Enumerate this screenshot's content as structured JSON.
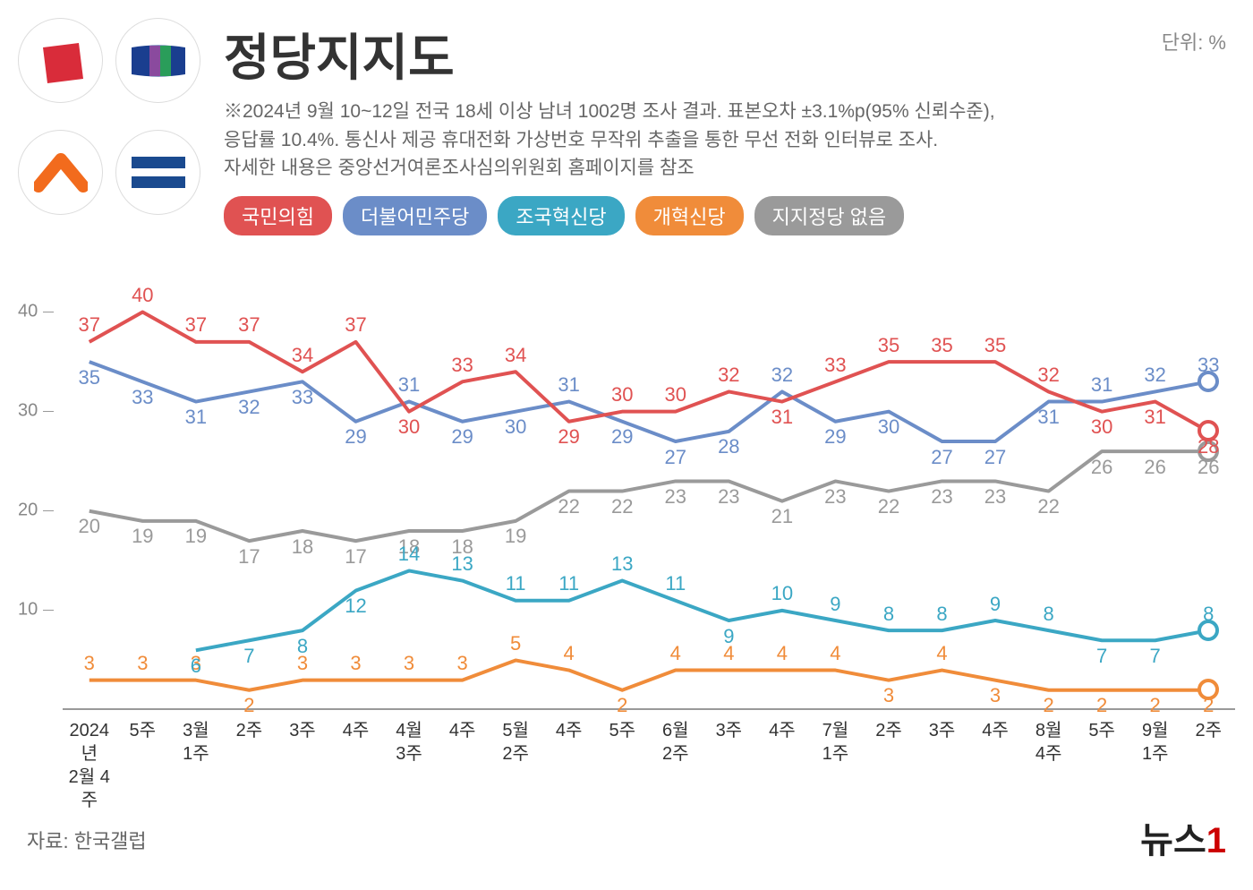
{
  "title": "정당지지도",
  "unit": "단위: %",
  "desc_line1": "※2024년  9월 10~12일 전국 18세 이상 남녀 1002명 조사 결과. 표본오차 ±3.1%p(95% 신뢰수준),",
  "desc_line2": "응답률 10.4%. 통신사 제공 휴대전화 가상번호 무작위 추출을 통한 무선 전화 인터뷰로 조사.",
  "desc_line3": "자세한 내용은 중앙선거여론조사심의위원회 홈페이지를 참조",
  "source": "자료: 한국갤럽",
  "brand": "뉴스",
  "brand_suffix": "1",
  "chart": {
    "type": "line",
    "ylim": [
      0,
      45
    ],
    "yticks": [
      10,
      20,
      30,
      40
    ],
    "background": "#ffffff",
    "axis_color": "#999999",
    "label_fontsize": 22,
    "x_labels": [
      "2024년\n2월 4주",
      "5주",
      "3월\n1주",
      "2주",
      "3주",
      "4주",
      "4월\n3주",
      "4주",
      "5월\n2주",
      "4주",
      "5주",
      "6월\n2주",
      "3주",
      "4주",
      "7월\n1주",
      "2주",
      "3주",
      "4주",
      "8월\n4주",
      "5주",
      "9월\n1주",
      "2주"
    ],
    "legend": [
      {
        "key": "ppp",
        "label": "국민의힘",
        "color": "#e05252"
      },
      {
        "key": "dpk",
        "label": "더불어민주당",
        "color": "#6b8dc8"
      },
      {
        "key": "rkp",
        "label": "조국혁신당",
        "color": "#3ba7c4"
      },
      {
        "key": "rfp",
        "label": "개혁신당",
        "color": "#f08c3a"
      },
      {
        "key": "none",
        "label": "지지정당 없음",
        "color": "#9a9a9a"
      }
    ],
    "series": {
      "ppp": {
        "color": "#e05252",
        "values": [
          37,
          40,
          37,
          37,
          34,
          37,
          30,
          33,
          34,
          29,
          30,
          30,
          32,
          31,
          33,
          35,
          35,
          35,
          32,
          30,
          31,
          28
        ],
        "label_above": [
          1,
          1,
          1,
          1,
          1,
          1,
          0,
          1,
          1,
          0,
          1,
          1,
          1,
          0,
          1,
          1,
          1,
          1,
          1,
          0,
          0,
          0
        ]
      },
      "dpk": {
        "color": "#6b8dc8",
        "values": [
          35,
          33,
          31,
          32,
          33,
          29,
          31,
          29,
          30,
          31,
          29,
          27,
          28,
          32,
          29,
          30,
          27,
          27,
          31,
          31,
          32,
          33
        ],
        "label_above": [
          0,
          0,
          0,
          0,
          0,
          0,
          1,
          0,
          0,
          1,
          0,
          0,
          0,
          1,
          0,
          0,
          0,
          0,
          0,
          1,
          1,
          1
        ]
      },
      "rkp": {
        "color": "#3ba7c4",
        "values": [
          null,
          null,
          6,
          7,
          8,
          12,
          14,
          13,
          11,
          11,
          13,
          11,
          9,
          10,
          9,
          8,
          8,
          9,
          8,
          7,
          7,
          8
        ],
        "label_above": [
          0,
          0,
          0,
          0,
          0,
          0,
          1,
          1,
          1,
          1,
          1,
          1,
          0,
          1,
          1,
          1,
          1,
          1,
          1,
          0,
          0,
          1
        ]
      },
      "rfp": {
        "color": "#f08c3a",
        "values": [
          3,
          3,
          3,
          2,
          3,
          3,
          3,
          3,
          5,
          4,
          2,
          4,
          4,
          4,
          4,
          3,
          4,
          3,
          2,
          2,
          2,
          2
        ],
        "label_above": [
          1,
          1,
          1,
          0,
          1,
          1,
          1,
          1,
          1,
          1,
          0,
          1,
          1,
          1,
          1,
          0,
          1,
          0,
          0,
          0,
          0,
          0
        ]
      },
      "none": {
        "color": "#9a9a9a",
        "values": [
          20,
          19,
          19,
          17,
          18,
          17,
          18,
          18,
          19,
          22,
          22,
          23,
          23,
          21,
          23,
          22,
          23,
          23,
          22,
          26,
          26,
          26
        ],
        "label_above": [
          0,
          0,
          0,
          0,
          0,
          0,
          0,
          0,
          0,
          0,
          0,
          0,
          0,
          0,
          0,
          0,
          0,
          0,
          0,
          0,
          0,
          0
        ]
      }
    },
    "line_width": 4,
    "end_marker_radius": 12
  },
  "party_logos": {
    "ppp": {
      "bg": "#ffffff",
      "shape": "#d92c3a"
    },
    "dpk": {
      "bg": "#ffffff",
      "c1": "#1a3e8f",
      "c2": "#8a4a9e",
      "c3": "#2a9d5a"
    },
    "rfp": {
      "bg": "#ffffff",
      "shape": "#f26b1d"
    },
    "rkp": {
      "bg": "#ffffff",
      "c1": "#1a4a8f",
      "c2": "#ffffff"
    }
  }
}
